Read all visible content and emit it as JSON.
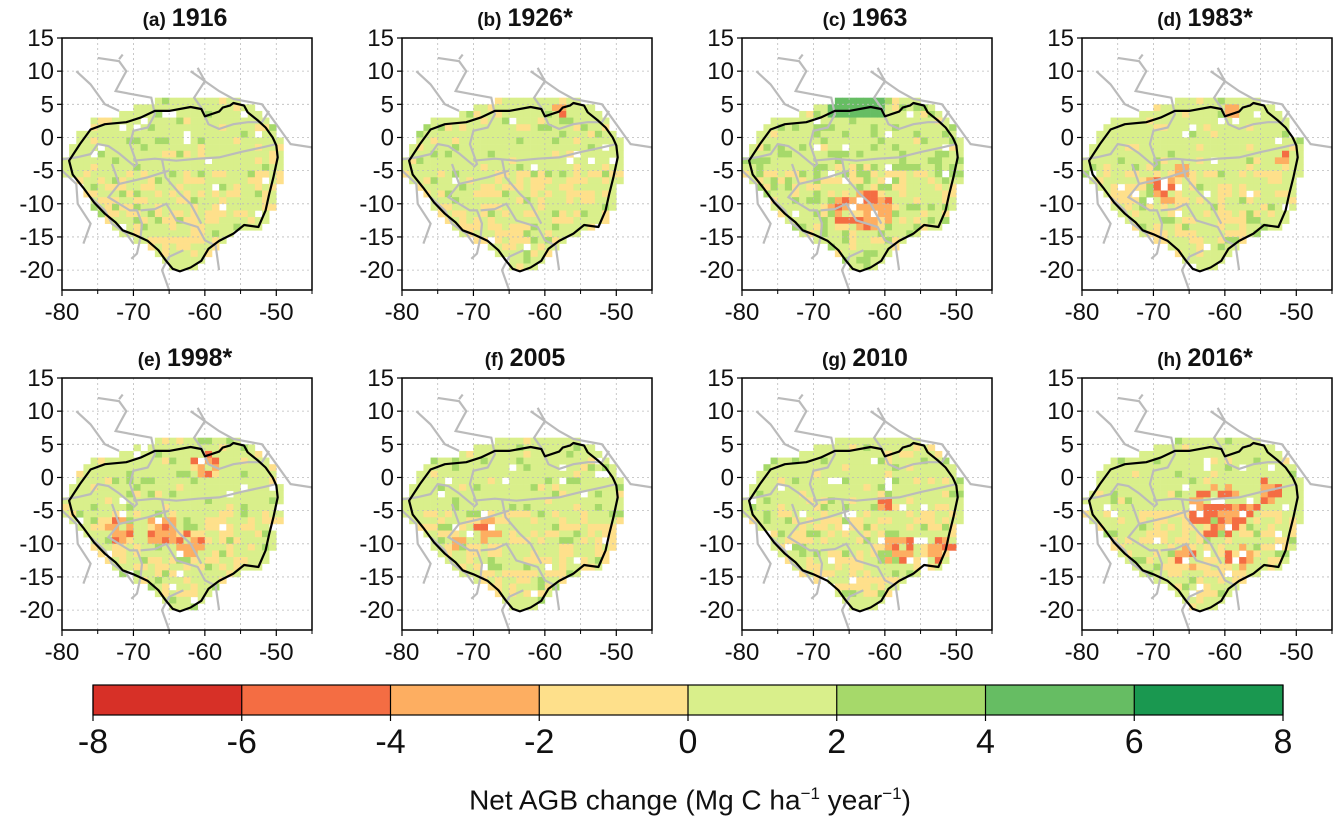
{
  "panels": [
    {
      "letter": "(a)",
      "year": "1916"
    },
    {
      "letter": "(b)",
      "year": "1926*"
    },
    {
      "letter": "(c)",
      "year": "1963"
    },
    {
      "letter": "(d)",
      "year": "1983*"
    },
    {
      "letter": "(e)",
      "year": "1998*"
    },
    {
      "letter": "(f)",
      "year": "2005"
    },
    {
      "letter": "(g)",
      "year": "2010"
    },
    {
      "letter": "(h)",
      "year": "2016*"
    }
  ],
  "map_axes": {
    "lon_range": [
      -80,
      -45
    ],
    "lat_range": [
      -23,
      15
    ],
    "lon_ticks": [
      -80,
      -70,
      -60,
      -50
    ],
    "lat_ticks": [
      15,
      10,
      5,
      0,
      -5,
      -10,
      -15,
      -20
    ],
    "grid": "dotted",
    "ocean_color": "#ffffff",
    "country_border_color": "#bbbbbb",
    "basin_outline_color": "#000000"
  },
  "colorbar": {
    "ticks": [
      "-8",
      "-6",
      "-4",
      "-2",
      "0",
      "2",
      "4",
      "6",
      "8"
    ],
    "bin_colors": [
      "#d73027",
      "#f46d43",
      "#fdae61",
      "#fee08b",
      "#d9ef8b",
      "#a6d96a",
      "#66bd63",
      "#1a9850"
    ],
    "label_prefix": "Net AGB change (Mg C ha",
    "label_exp1": "−1",
    "label_mid": " year",
    "label_exp2": "−1",
    "label_suffix": ")"
  }
}
